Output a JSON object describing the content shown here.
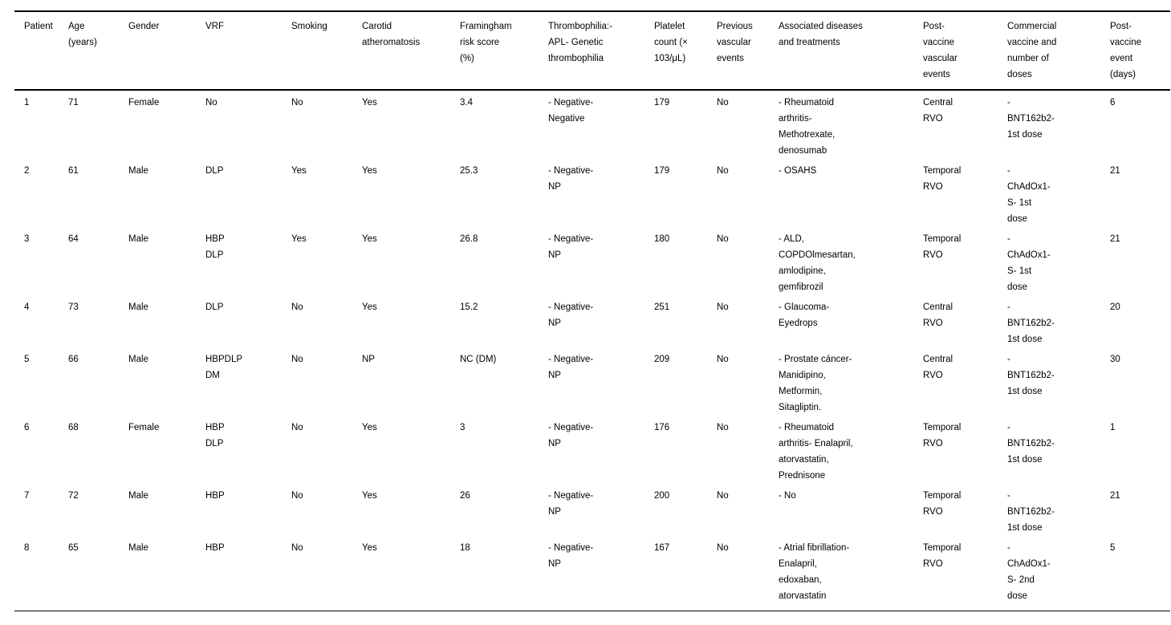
{
  "table": {
    "columns": [
      "Patient",
      "Age\n(years)",
      "Gender",
      "VRF",
      "Smoking",
      "Carotid\natheromatosis",
      "Framingham\nrisk score\n(%)",
      "Thrombophilia:-\nAPL- Genetic\nthrombophilia",
      "Platelet\ncount (×\n103/μL)",
      "Previous\nvascular\nevents",
      "Associated diseases\nand treatments",
      "Post-\nvaccine\nvascular\nevents",
      "Commercial\nvaccine and\nnumber of\ndoses",
      "Post-\nvaccine\nevent\n(days)"
    ],
    "rows": [
      [
        "1",
        "71",
        "Female",
        "No",
        "No",
        "Yes",
        "3.4",
        "- Negative-\nNegative",
        "179",
        "No",
        "- Rheumatoid\narthritis-\nMethotrexate,\ndenosumab",
        "Central\nRVO",
        "-\nBNT162b2-\n1st dose",
        "6"
      ],
      [
        "2",
        "61",
        "Male",
        "DLP",
        "Yes",
        "Yes",
        "25.3",
        "- Negative-\nNP",
        "179",
        "No",
        "- OSAHS",
        "Temporal\nRVO",
        "-\nChAdOx1-\nS- 1st\ndose",
        "21"
      ],
      [
        "3",
        "64",
        "Male",
        "HBP\nDLP",
        "Yes",
        "Yes",
        "26.8",
        "- Negative-\nNP",
        "180",
        "No",
        "- ALD,\nCOPDOlmesartan,\namlodipine,\ngemfibrozil",
        "Temporal\nRVO",
        "-\nChAdOx1-\nS- 1st\ndose",
        "21"
      ],
      [
        "4",
        "73",
        "Male",
        "DLP",
        "No",
        "Yes",
        "15.2",
        "- Negative-\nNP",
        "251",
        "No",
        "- Glaucoma-\nEyedrops",
        "Central\nRVO",
        "-\nBNT162b2-\n1st dose",
        "20"
      ],
      [
        "5",
        "66",
        "Male",
        "HBPDLP\nDM",
        "No",
        "NP",
        "NC (DM)",
        "- Negative-\nNP",
        "209",
        "No",
        "- Prostate cáncer-\nManidipino,\nMetformin,\nSitagliptin.",
        "Central\nRVO",
        "-\nBNT162b2-\n1st dose",
        "30"
      ],
      [
        "6",
        "68",
        "Female",
        "HBP\nDLP",
        "No",
        "Yes",
        "3",
        "- Negative-\nNP",
        "176",
        "No",
        "- Rheumatoid\narthritis- Enalapril,\natorvastatin,\nPrednisone",
        "Temporal\nRVO",
        "-\nBNT162b2-\n1st dose",
        "1"
      ],
      [
        "7",
        "72",
        "Male",
        "HBP",
        "No",
        "Yes",
        "26",
        "- Negative-\nNP",
        "200",
        "No",
        "- No",
        "Temporal\nRVO",
        "-\nBNT162b2-\n1st dose",
        "21"
      ],
      [
        "8",
        "65",
        "Male",
        "HBP",
        "No",
        "Yes",
        "18",
        "- Negative-\nNP",
        "167",
        "No",
        "- Atrial fibrillation-\nEnalapril,\nedoxaban,\natorvastatin",
        "Temporal\nRVO",
        "-\nChAdOx1-\nS- 2nd\ndose",
        "5"
      ]
    ]
  }
}
